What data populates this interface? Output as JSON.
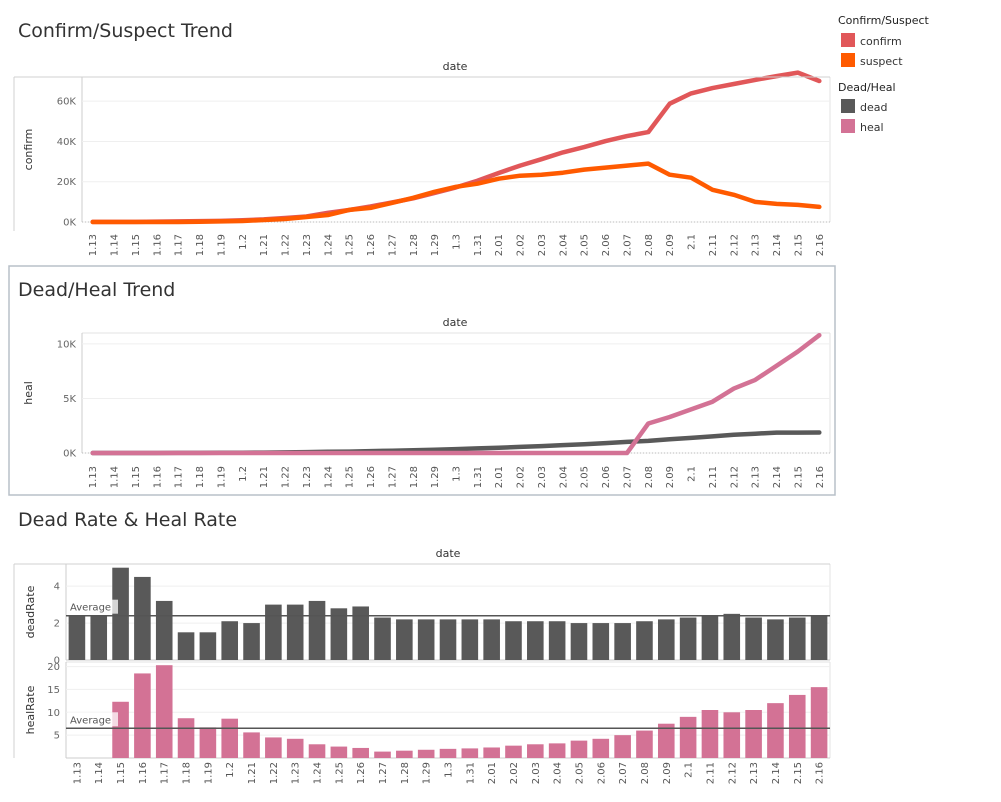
{
  "dates": [
    "1.13",
    "1.14",
    "1.15",
    "1.16",
    "1.17",
    "1.18",
    "1.19",
    "1.2",
    "1.21",
    "1.22",
    "1.23",
    "1.24",
    "1.25",
    "1.26",
    "1.27",
    "1.28",
    "1.29",
    "1.3",
    "1.31",
    "2.01",
    "2.02",
    "2.03",
    "2.04",
    "2.05",
    "2.06",
    "2.07",
    "2.08",
    "2.09",
    "2.1",
    "2.11",
    "2.12",
    "2.13",
    "2.14",
    "2.15",
    "2.16"
  ],
  "legend": {
    "group1_title": "Confirm/Suspect",
    "group1_items": [
      {
        "label": "confirm",
        "color": "#e15759"
      },
      {
        "label": "suspect",
        "color": "#ff5a00"
      }
    ],
    "group2_title": "Dead/Heal",
    "group2_items": [
      {
        "label": "dead",
        "color": "#595959"
      },
      {
        "label": "heal",
        "color": "#d37295"
      }
    ]
  },
  "avg_label": "Average",
  "chart_data": [
    {
      "type": "line",
      "title": "Confirm/Suspect Trend",
      "xlabel": "date",
      "ylabel": "confirm",
      "yticks": [
        "0K",
        "20K",
        "40K",
        "60K"
      ],
      "ylim": [
        0,
        72000
      ],
      "series": [
        {
          "name": "confirm",
          "color": "#e15759",
          "values": [
            41,
            45,
            62,
            198,
            291,
            440,
            571,
            830,
            1287,
            1975,
            2744,
            4515,
            5974,
            7711,
            9692,
            11791,
            14380,
            17205,
            20438,
            24324,
            28018,
            31161,
            34546,
            37198,
            40171,
            42638,
            44653,
            58761,
            63851,
            66492,
            68500,
            70548,
            72436,
            74185,
            70000
          ]
        },
        {
          "name": "suspect",
          "color": "#ff5a00",
          "values": [
            0,
            0,
            0,
            0,
            0,
            100,
            300,
            500,
            1000,
            1500,
            2500,
            3500,
            6000,
            7000,
            9500,
            12000,
            15000,
            17500,
            19000,
            21500,
            23000,
            23500,
            24500,
            26000,
            27000,
            28000,
            29000,
            23500,
            22000,
            16000,
            13500,
            10000,
            9000,
            8500,
            7500
          ]
        }
      ]
    },
    {
      "type": "line",
      "title": "Dead/Heal Trend",
      "xlabel": "date",
      "ylabel": "heal",
      "yticks": [
        "0K",
        "5K",
        "10K"
      ],
      "ylim": [
        0,
        11000
      ],
      "series": [
        {
          "name": "dead",
          "color": "#595959",
          "values": [
            1,
            1,
            2,
            3,
            6,
            9,
            17,
            25,
            41,
            56,
            80,
            106,
            132,
            170,
            213,
            259,
            304,
            361,
            425,
            490,
            563,
            636,
            722,
            811,
            908,
            1016,
            1113,
            1259,
            1380,
            1523,
            1665,
            1770,
            1868,
            1870,
            1880
          ]
        },
        {
          "name": "heal",
          "color": "#d37295",
          "values": [
            0,
            0,
            0,
            0,
            0,
            0,
            0,
            0,
            0,
            0,
            0,
            0,
            0,
            0,
            0,
            0,
            0,
            0,
            0,
            0,
            0,
            0,
            0,
            0,
            0,
            0,
            2700,
            3300,
            4000,
            4700,
            5900,
            6700,
            8000,
            9300,
            10800
          ]
        }
      ]
    },
    {
      "type": "bar",
      "title": "Dead Rate & Heal Rate",
      "xlabel": "date",
      "ylabel": "deadRate",
      "yticks": [
        "0",
        "2",
        "4"
      ],
      "ylim": [
        0,
        5.2
      ],
      "average": 2.4,
      "color": "#595959",
      "values": [
        2.4,
        2.4,
        5.0,
        4.5,
        3.2,
        1.5,
        1.5,
        2.1,
        2.0,
        3.0,
        3.0,
        3.2,
        2.8,
        2.9,
        2.3,
        2.2,
        2.2,
        2.2,
        2.2,
        2.2,
        2.1,
        2.1,
        2.1,
        2.0,
        2.0,
        2.0,
        2.1,
        2.2,
        2.3,
        2.4,
        2.5,
        2.3,
        2.2,
        2.3,
        2.4
      ]
    },
    {
      "type": "bar",
      "title": "",
      "xlabel": "",
      "ylabel": "healRate",
      "yticks": [
        "5",
        "10",
        "15",
        "20"
      ],
      "ylim": [
        0,
        21
      ],
      "average": 6.5,
      "color": "#d37295",
      "values": [
        0,
        0,
        12.3,
        18.5,
        20.3,
        8.7,
        6.7,
        8.6,
        5.6,
        4.5,
        4.2,
        3.0,
        2.5,
        2.2,
        1.4,
        1.6,
        1.8,
        2.0,
        2.1,
        2.3,
        2.7,
        3.0,
        3.2,
        3.8,
        4.2,
        5.0,
        6.0,
        7.5,
        9.0,
        10.5,
        10.0,
        10.5,
        12.0,
        13.8,
        15.5
      ]
    }
  ]
}
